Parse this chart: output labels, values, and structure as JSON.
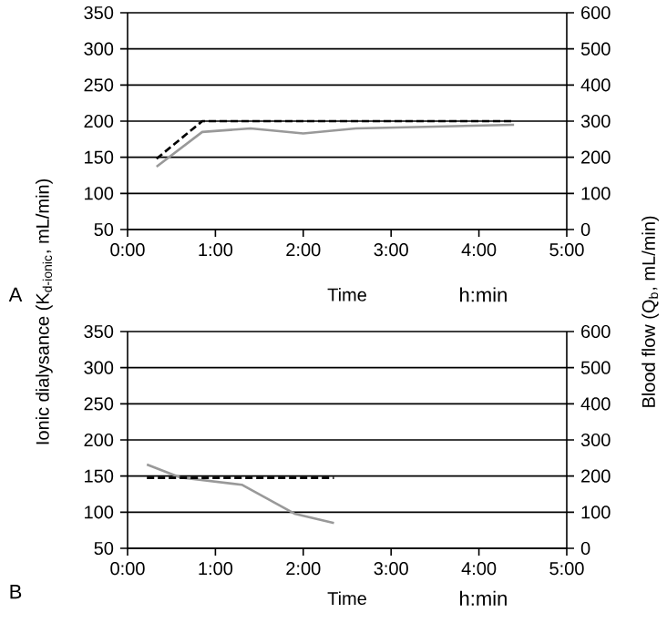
{
  "chart_data": [
    {
      "type": "line",
      "xlabel": "Time",
      "ylabel": "Ionic dialysance (K$_{d-ionic}$, mL/min)",
      "y2label": "Blood flow (Q$_{b}$, mL/min)",
      "annotations": [
        "A",
        "h:min"
      ],
      "xlim": [
        0,
        5
      ],
      "xticks": [
        {
          "value": 0,
          "label": "0:00"
        },
        {
          "value": 1,
          "label": "1:00"
        },
        {
          "value": 2,
          "label": "2:00"
        },
        {
          "value": 3,
          "label": "3:00"
        },
        {
          "value": 4,
          "label": "4:00"
        },
        {
          "value": 5,
          "label": "5:00"
        }
      ],
      "ylim": [
        50,
        350
      ],
      "yticks": [
        50,
        100,
        150,
        200,
        250,
        300,
        350
      ],
      "y2lim": [
        0,
        600
      ],
      "y2ticks": [
        0,
        100,
        200,
        300,
        400,
        500,
        600
      ],
      "grid": "y",
      "marker": "none",
      "series": [
        {
          "color": "#999999",
          "line_style": "solid",
          "x": [
            0.33,
            0.85,
            1.4,
            2.0,
            2.6,
            4.4
          ],
          "values": [
            137,
            185,
            190,
            183,
            190,
            195
          ]
        },
        {
          "color": "#000000",
          "line_style": "dashed",
          "axis": "y2",
          "x": [
            0.33,
            0.85,
            4.4
          ],
          "values": [
            196,
            300,
            300
          ]
        }
      ]
    },
    {
      "type": "line",
      "xlabel": "Time",
      "annotations": [
        "B",
        "h:min"
      ],
      "xlim": [
        0,
        5
      ],
      "xticks": [
        {
          "value": 0,
          "label": "0:00"
        },
        {
          "value": 1,
          "label": "1:00"
        },
        {
          "value": 2,
          "label": "2:00"
        },
        {
          "value": 3,
          "label": "3:00"
        },
        {
          "value": 4,
          "label": "4:00"
        },
        {
          "value": 5,
          "label": "5:00"
        }
      ],
      "ylim": [
        50,
        350
      ],
      "yticks": [
        50,
        100,
        150,
        200,
        250,
        300,
        350
      ],
      "y2lim": [
        0,
        600
      ],
      "y2ticks": [
        0,
        100,
        200,
        300,
        400,
        500,
        600
      ],
      "grid": "y",
      "marker": "none",
      "series": [
        {
          "color": "#999999",
          "line_style": "solid",
          "x": [
            0.22,
            0.6,
            1.3,
            1.9,
            2.35
          ],
          "values": [
            166,
            148,
            138,
            98,
            85
          ]
        },
        {
          "color": "#000000",
          "line_style": "dashed",
          "axis": "y2",
          "x": [
            0.22,
            2.35
          ],
          "values": [
            195,
            195
          ]
        }
      ]
    }
  ]
}
